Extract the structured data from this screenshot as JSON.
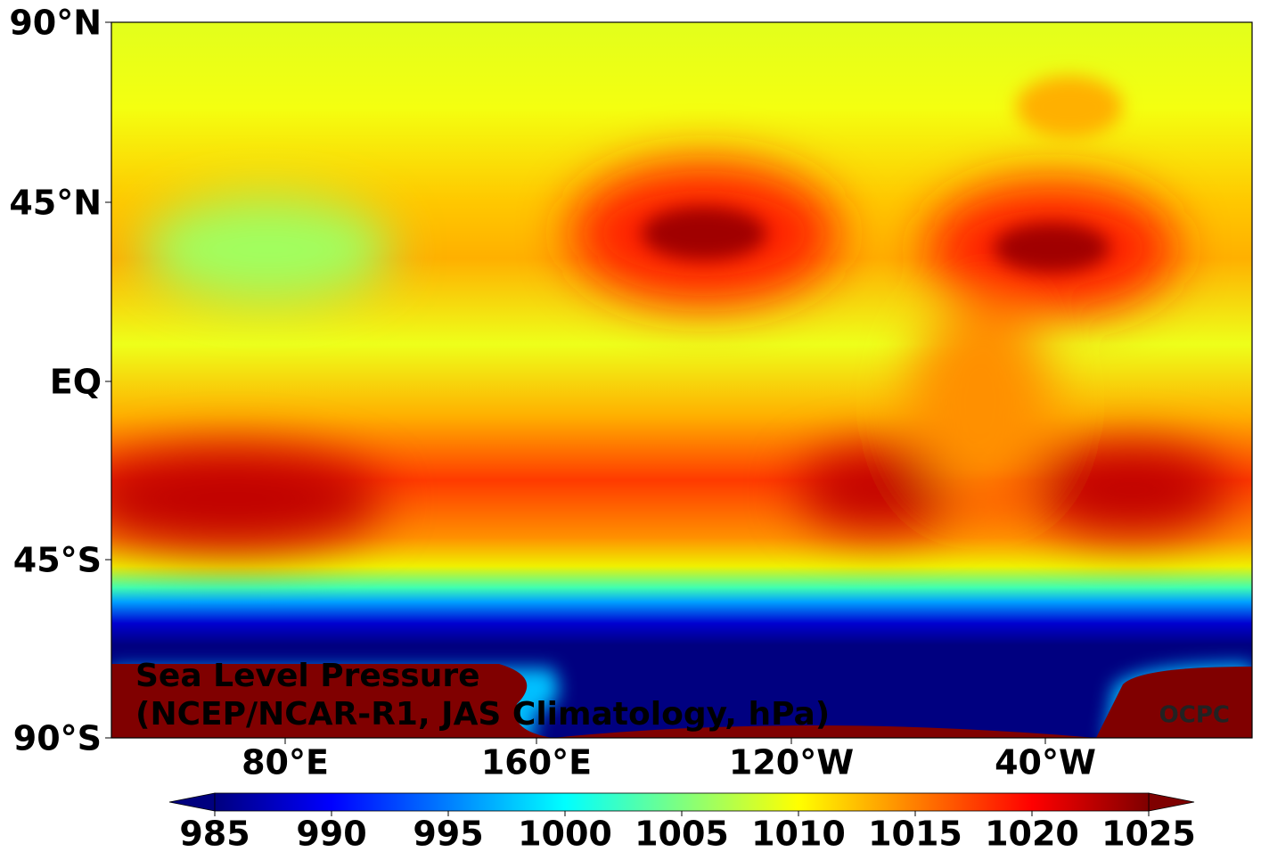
{
  "map": {
    "title": [
      "Sea Level Pressure",
      "(NCEP/NCAR-R1, JAS Climatology, hPa)"
    ],
    "credit": "OCPC",
    "lat_labels": [
      "90°N",
      "45°N",
      "EQ",
      "45°S",
      "90°S"
    ],
    "lon_labels": [
      "80°E",
      "160°E",
      "120°W",
      "40°W"
    ],
    "colorbar": {
      "lim": [
        985,
        1025
      ],
      "ticks": [
        985,
        990,
        995,
        1000,
        1005,
        1010,
        1015,
        1020,
        1025
      ]
    }
  }
}
